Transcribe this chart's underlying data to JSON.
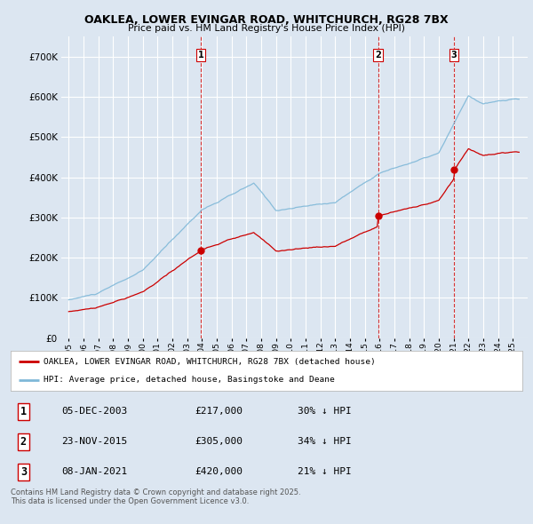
{
  "title_line1": "OAKLEA, LOWER EVINGAR ROAD, WHITCHURCH, RG28 7BX",
  "title_line2": "Price paid vs. HM Land Registry's House Price Index (HPI)",
  "bg_color": "#dce6f1",
  "grid_color": "#ffffff",
  "hpi_color": "#7fb8d8",
  "price_color": "#cc0000",
  "dashed_color": "#cc0000",
  "legend_entries": [
    "OAKLEA, LOWER EVINGAR ROAD, WHITCHURCH, RG28 7BX (detached house)",
    "HPI: Average price, detached house, Basingstoke and Deane"
  ],
  "table_rows": [
    {
      "num": "1",
      "date": "05-DEC-2003",
      "price": "£217,000",
      "hpi": "30% ↓ HPI"
    },
    {
      "num": "2",
      "date": "23-NOV-2015",
      "price": "£305,000",
      "hpi": "34% ↓ HPI"
    },
    {
      "num": "3",
      "date": "08-JAN-2021",
      "price": "£420,000",
      "hpi": "21% ↓ HPI"
    }
  ],
  "footnote": "Contains HM Land Registry data © Crown copyright and database right 2025.\nThis data is licensed under the Open Government Licence v3.0.",
  "ylim": [
    0,
    750000
  ],
  "xlim": [
    1994.5,
    2026.0
  ],
  "sale_dates": [
    2003.92,
    2015.9,
    2021.03
  ],
  "sale_prices": [
    217000,
    305000,
    420000
  ],
  "sale_labels": [
    "1",
    "2",
    "3"
  ]
}
